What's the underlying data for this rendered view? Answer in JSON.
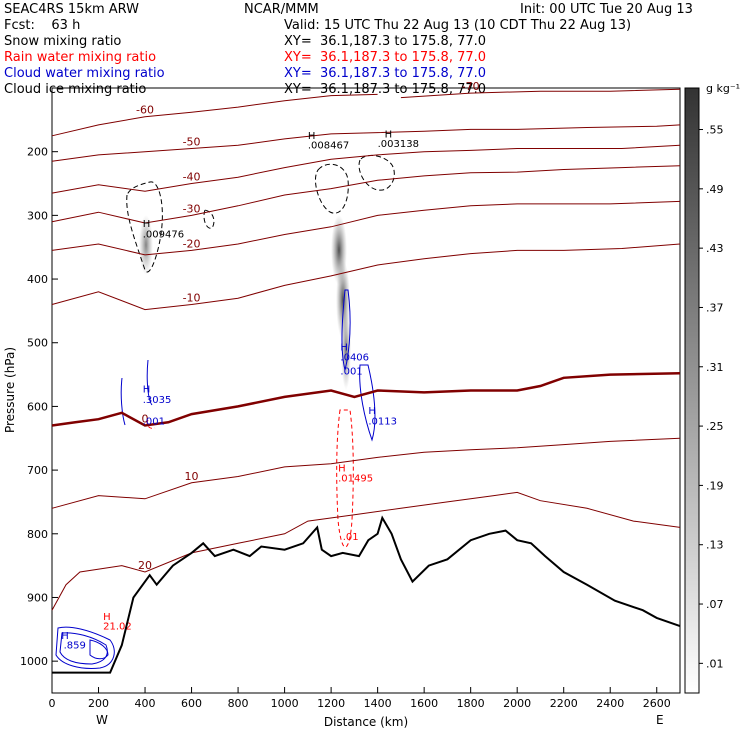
{
  "header": {
    "model": "SEAC4RS 15km ARW",
    "forecast": "Fcst:    63 h",
    "org": "NCAR/MMM",
    "init": "Init: 00 UTC Tue 20 Aug 13",
    "valid": "Valid: 15 UTC Thu 22 Aug 13 (10 CDT Thu 22 Aug 13)"
  },
  "fields": [
    {
      "name": "Snow mixing ratio",
      "xy": "XY=  36.1,187.3 to 175.8, 77.0",
      "color": "#000000"
    },
    {
      "name": "Rain water mixing ratio",
      "xy": "XY=  36.1,187.3 to 175.8, 77.0",
      "color": "#ff0000"
    },
    {
      "name": "Cloud water mixing ratio",
      "xy": "XY=  36.1,187.3 to 175.8, 77.0",
      "color": "#0000cc"
    },
    {
      "name": "Cloud ice mixing ratio",
      "xy": "XY=  36.1,187.3 to 175.8, 77.0",
      "color": "#000000"
    }
  ],
  "chart_data": {
    "type": "contour",
    "xlabel": "Distance (km)",
    "ylabel": "Pressure (hPa)",
    "xlim": [
      0,
      2700
    ],
    "ylim": [
      1050,
      100
    ],
    "x_ticks": [
      0,
      200,
      400,
      600,
      800,
      1000,
      1200,
      1400,
      1600,
      1800,
      2000,
      2200,
      2400,
      2600
    ],
    "y_ticks": [
      200,
      300,
      400,
      500,
      600,
      700,
      800,
      900,
      1000
    ],
    "x_end_labels": {
      "left": "W",
      "right": "E"
    },
    "colorbar": {
      "unit": "g kg⁻¹",
      "ticks": [
        ".01",
        ".07",
        ".13",
        ".19",
        ".25",
        ".31",
        ".37",
        ".43",
        ".49",
        ".55"
      ]
    },
    "temperature_contours": [
      {
        "label": "-70",
        "points": [
          [
            1500,
            115
          ],
          [
            1800,
            108
          ],
          [
            2100,
            105
          ],
          [
            2400,
            105
          ],
          [
            2700,
            102
          ]
        ]
      },
      {
        "label": "-60",
        "points": [
          [
            0,
            175
          ],
          [
            200,
            158
          ],
          [
            400,
            145
          ],
          [
            600,
            138
          ],
          [
            800,
            130
          ],
          [
            1000,
            120
          ],
          [
            1200,
            112
          ],
          [
            1400,
            110
          ]
        ]
      },
      {
        "label": "-50",
        "points": [
          [
            0,
            215
          ],
          [
            200,
            205
          ],
          [
            400,
            200
          ],
          [
            600,
            195
          ],
          [
            800,
            190
          ],
          [
            1000,
            180
          ],
          [
            1200,
            172
          ],
          [
            1400,
            170
          ],
          [
            1600,
            168
          ],
          [
            1800,
            165
          ],
          [
            2000,
            165
          ],
          [
            2300,
            162
          ],
          [
            2600,
            160
          ],
          [
            2700,
            158
          ]
        ]
      },
      {
        "label": "-40",
        "points": [
          [
            0,
            265
          ],
          [
            200,
            252
          ],
          [
            400,
            262
          ],
          [
            600,
            250
          ],
          [
            800,
            240
          ],
          [
            1000,
            225
          ],
          [
            1200,
            212
          ],
          [
            1400,
            205
          ],
          [
            1600,
            200
          ],
          [
            1800,
            198
          ],
          [
            2000,
            195
          ],
          [
            2200,
            195
          ],
          [
            2450,
            195
          ],
          [
            2700,
            190
          ]
        ]
      },
      {
        "label": "-30",
        "points": [
          [
            0,
            310
          ],
          [
            200,
            295
          ],
          [
            400,
            312
          ],
          [
            600,
            300
          ],
          [
            800,
            285
          ],
          [
            1000,
            268
          ],
          [
            1200,
            258
          ],
          [
            1400,
            245
          ],
          [
            1600,
            238
          ],
          [
            1800,
            233
          ],
          [
            2000,
            232
          ],
          [
            2200,
            228
          ],
          [
            2450,
            225
          ],
          [
            2700,
            222
          ]
        ]
      },
      {
        "label": "-20",
        "points": [
          [
            0,
            355
          ],
          [
            200,
            345
          ],
          [
            400,
            362
          ],
          [
            600,
            355
          ],
          [
            800,
            345
          ],
          [
            1000,
            330
          ],
          [
            1200,
            318
          ],
          [
            1400,
            300
          ],
          [
            1600,
            292
          ],
          [
            1800,
            285
          ],
          [
            2000,
            282
          ],
          [
            2200,
            282
          ],
          [
            2400,
            282
          ],
          [
            2700,
            278
          ]
        ]
      },
      {
        "label": "-10",
        "points": [
          [
            0,
            440
          ],
          [
            200,
            420
          ],
          [
            400,
            448
          ],
          [
            600,
            440
          ],
          [
            800,
            430
          ],
          [
            1000,
            410
          ],
          [
            1200,
            395
          ],
          [
            1400,
            378
          ],
          [
            1600,
            368
          ],
          [
            1800,
            360
          ],
          [
            2000,
            355
          ],
          [
            2200,
            355
          ],
          [
            2450,
            352
          ],
          [
            2700,
            345
          ]
        ]
      },
      {
        "label": "0",
        "bold": true,
        "points": [
          [
            0,
            630
          ],
          [
            100,
            625
          ],
          [
            200,
            620
          ],
          [
            300,
            610
          ],
          [
            400,
            630
          ],
          [
            500,
            625
          ],
          [
            600,
            612
          ],
          [
            800,
            600
          ],
          [
            1000,
            585
          ],
          [
            1200,
            575
          ],
          [
            1300,
            585
          ],
          [
            1400,
            575
          ],
          [
            1600,
            578
          ],
          [
            1800,
            575
          ],
          [
            2000,
            575
          ],
          [
            2100,
            568
          ],
          [
            2200,
            555
          ],
          [
            2400,
            550
          ],
          [
            2700,
            548
          ]
        ]
      },
      {
        "label": "10",
        "points": [
          [
            0,
            760
          ],
          [
            200,
            740
          ],
          [
            400,
            745
          ],
          [
            600,
            720
          ],
          [
            800,
            710
          ],
          [
            1000,
            695
          ],
          [
            1200,
            690
          ],
          [
            1400,
            680
          ],
          [
            1600,
            672
          ],
          [
            1800,
            668
          ],
          [
            2000,
            665
          ],
          [
            2200,
            660
          ],
          [
            2400,
            655
          ],
          [
            2700,
            650
          ]
        ]
      },
      {
        "label": "20",
        "points": [
          [
            0,
            920
          ],
          [
            60,
            880
          ],
          [
            120,
            860
          ],
          [
            300,
            850
          ],
          [
            400,
            860
          ],
          [
            600,
            830
          ],
          [
            800,
            815
          ],
          [
            1000,
            800
          ],
          [
            1100,
            780
          ],
          [
            1300,
            770
          ],
          [
            1500,
            760
          ],
          [
            1700,
            750
          ],
          [
            1900,
            740
          ],
          [
            2000,
            735
          ],
          [
            2100,
            748
          ],
          [
            2300,
            760
          ],
          [
            2500,
            780
          ],
          [
            2700,
            790
          ]
        ]
      }
    ],
    "annotations": [
      {
        "text": "H",
        "x": 1100,
        "y": 180,
        "color": "#000000"
      },
      {
        "text": ".008467",
        "x": 1100,
        "y": 195,
        "color": "#000000"
      },
      {
        "text": "H",
        "x": 1430,
        "y": 178,
        "color": "#000000"
      },
      {
        "text": ".003138",
        "x": 1400,
        "y": 193,
        "color": "#000000"
      },
      {
        "text": "H",
        "x": 390,
        "y": 318,
        "color": "#000000"
      },
      {
        "text": ".009476",
        "x": 390,
        "y": 335,
        "color": "#000000"
      },
      {
        "text": "H",
        "x": 1240,
        "y": 512,
        "color": "#0000cc"
      },
      {
        "text": ".0406",
        "x": 1240,
        "y": 528,
        "color": "#0000cc"
      },
      {
        "text": ".001",
        "x": 1240,
        "y": 550,
        "color": "#0000cc"
      },
      {
        "text": "H",
        "x": 390,
        "y": 578,
        "color": "#0000cc"
      },
      {
        "text": ".3035",
        "x": 390,
        "y": 595,
        "color": "#0000cc"
      },
      {
        "text": ".001",
        "x": 390,
        "y": 628,
        "color": "#0000cc"
      },
      {
        "text": "H",
        "x": 1360,
        "y": 612,
        "color": "#0000cc"
      },
      {
        "text": ".0113",
        "x": 1360,
        "y": 628,
        "color": "#0000cc"
      },
      {
        "text": "H",
        "x": 1230,
        "y": 702,
        "color": "#ff0000"
      },
      {
        "text": ".01495",
        "x": 1230,
        "y": 718,
        "color": "#ff0000"
      },
      {
        "text": ".01",
        "x": 1250,
        "y": 810,
        "color": "#ff0000"
      },
      {
        "text": "H",
        "x": 220,
        "y": 935,
        "color": "#ff0000"
      },
      {
        "text": "21.02",
        "x": 220,
        "y": 950,
        "color": "#ff0000"
      },
      {
        "text": "H",
        "x": 40,
        "y": 965,
        "color": "#0000cc"
      },
      {
        "text": ".859",
        "x": 50,
        "y": 980,
        "color": "#0000cc"
      }
    ],
    "terrain": [
      [
        0,
        1018
      ],
      [
        250,
        1018
      ],
      [
        300,
        975
      ],
      [
        350,
        900
      ],
      [
        420,
        865
      ],
      [
        450,
        880
      ],
      [
        520,
        850
      ],
      [
        600,
        830
      ],
      [
        650,
        815
      ],
      [
        700,
        835
      ],
      [
        780,
        825
      ],
      [
        850,
        835
      ],
      [
        900,
        820
      ],
      [
        1000,
        825
      ],
      [
        1080,
        815
      ],
      [
        1140,
        790
      ],
      [
        1160,
        825
      ],
      [
        1200,
        835
      ],
      [
        1250,
        830
      ],
      [
        1320,
        835
      ],
      [
        1360,
        810
      ],
      [
        1400,
        800
      ],
      [
        1420,
        775
      ],
      [
        1460,
        800
      ],
      [
        1500,
        840
      ],
      [
        1550,
        875
      ],
      [
        1620,
        850
      ],
      [
        1700,
        840
      ],
      [
        1800,
        810
      ],
      [
        1880,
        800
      ],
      [
        1950,
        795
      ],
      [
        2000,
        810
      ],
      [
        2060,
        815
      ],
      [
        2120,
        835
      ],
      [
        2200,
        860
      ],
      [
        2300,
        880
      ],
      [
        2420,
        905
      ],
      [
        2540,
        920
      ],
      [
        2600,
        932
      ],
      [
        2700,
        945
      ]
    ]
  }
}
